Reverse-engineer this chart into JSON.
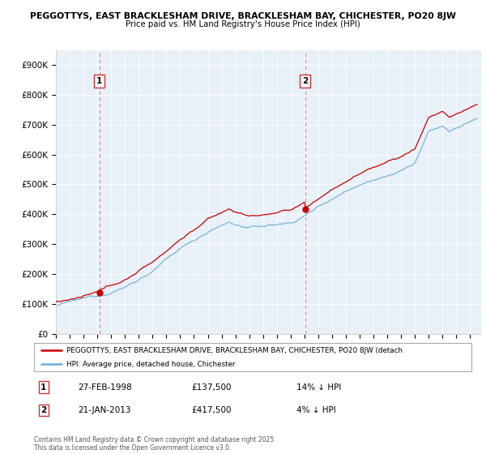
{
  "title1": "PEGGOTTYS, EAST BRACKLESHAM DRIVE, BRACKLESHAM BAY, CHICHESTER, PO20 8JW",
  "title2": "Price paid vs. HM Land Registry's House Price Index (HPI)",
  "legend_line1": "PEGGOTTYS, EAST BRACKLESHAM DRIVE, BRACKLESHAM BAY, CHICHESTER, PO20 8JW (detach",
  "legend_line2": "HPI: Average price, detached house, Chichester",
  "ann1_label": "1",
  "ann1_date": "27-FEB-1998",
  "ann1_price": "£137,500",
  "ann1_note": "14% ↓ HPI",
  "ann2_label": "2",
  "ann2_date": "21-JAN-2013",
  "ann2_price": "£417,500",
  "ann2_note": "4% ↓ HPI",
  "vline1_x": 1998.15,
  "vline2_x": 2013.05,
  "sale1_x": 1998.15,
  "sale1_y": 137500,
  "sale2_x": 2013.05,
  "sale2_y": 417500,
  "ylim": [
    0,
    950000
  ],
  "xlim_start": 1995.0,
  "xlim_end": 2025.8,
  "ytick_values": [
    0,
    100000,
    200000,
    300000,
    400000,
    500000,
    600000,
    700000,
    800000,
    900000
  ],
  "ytick_labels": [
    "£0",
    "£100K",
    "£200K",
    "£300K",
    "£400K",
    "£500K",
    "£600K",
    "£700K",
    "£800K",
    "£900K"
  ],
  "color_red": "#cc0000",
  "color_blue": "#6baed6",
  "color_vline": "#e88080",
  "color_bg": "#e8f0f8",
  "footer": "Contains HM Land Registry data © Crown copyright and database right 2025.\nThis data is licensed under the Open Government Licence v3.0."
}
